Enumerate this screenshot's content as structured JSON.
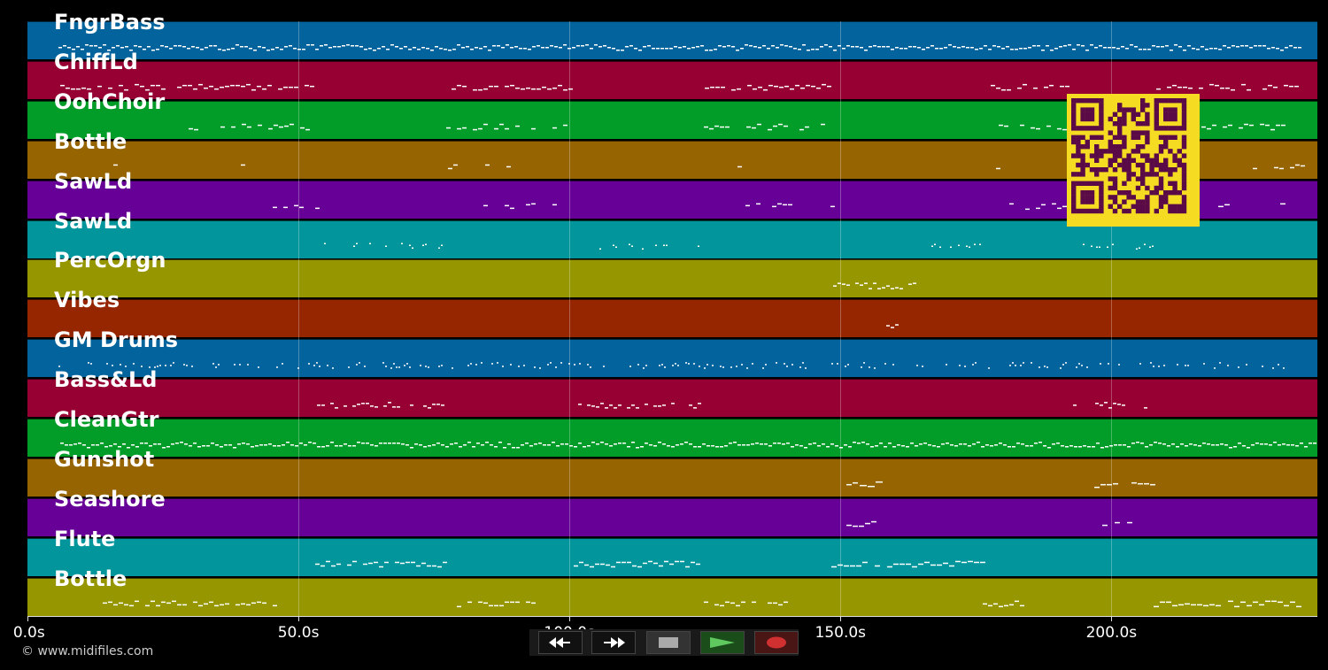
{
  "window": {
    "copyright": "© www.midifiles.com"
  },
  "colors": {
    "lanes": [
      "#03639c",
      "#960033",
      "#029c29",
      "#966400",
      "#660096",
      "#02969c",
      "#969600",
      "#962600",
      "#03639c",
      "#960033",
      "#029c29",
      "#966400",
      "#660096",
      "#02969c",
      "#969600"
    ],
    "note": "#ffffff",
    "qr_bg": "#f5dc23",
    "qr_fg": "#5a0a46"
  },
  "tracks": [
    {
      "name": "FngrBass"
    },
    {
      "name": "ChiffLd"
    },
    {
      "name": "OohChoir"
    },
    {
      "name": "Bottle"
    },
    {
      "name": "SawLd"
    },
    {
      "name": "SawLd"
    },
    {
      "name": "PercOrgn"
    },
    {
      "name": "Vibes"
    },
    {
      "name": "GM Drums"
    },
    {
      "name": "Bass&Ld"
    },
    {
      "name": "CleanGtr"
    },
    {
      "name": "Gunshot"
    },
    {
      "name": "Seashore"
    },
    {
      "name": "Flute"
    },
    {
      "name": "Bottle"
    }
  ],
  "axis": {
    "max_seconds": 238,
    "ticks": [
      {
        "value": 0,
        "label": "0.0s"
      },
      {
        "value": 50,
        "label": "50.0s"
      },
      {
        "value": 100,
        "label": "100.0s"
      },
      {
        "value": 150,
        "label": "150.0s"
      },
      {
        "value": 200,
        "label": "200.0s"
      }
    ]
  },
  "transport": {
    "buttons": [
      {
        "name": "rewind-button",
        "icon": "rewind-icon"
      },
      {
        "name": "fast-forward-button",
        "icon": "fast-forward-icon"
      },
      {
        "name": "stop-button",
        "icon": "stop-icon"
      },
      {
        "name": "play-button",
        "icon": "play-icon"
      },
      {
        "name": "record-button",
        "icon": "record-icon"
      }
    ]
  },
  "qr": {
    "icon": "qr-code-icon"
  }
}
